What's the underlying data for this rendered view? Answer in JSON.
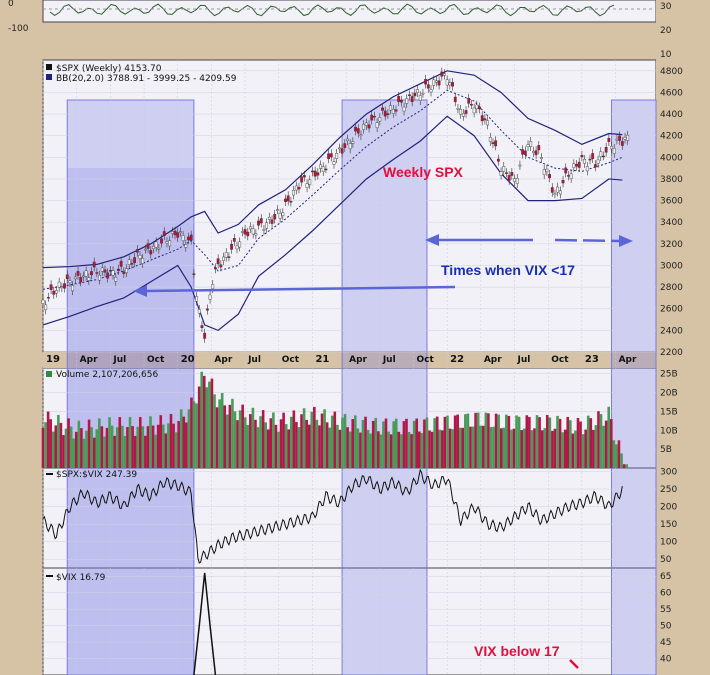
{
  "chart_data": [
    {
      "panel": "spx",
      "type": "candlestick",
      "title": "$SPX (Weekly) 4153.70",
      "indicator_label": "BB(20,2.0) 3788.91 - 3999.25 - 4209.59",
      "ylim": [
        2200,
        4800
      ],
      "y_ticks": [
        "4800",
        "4600",
        "4400",
        "4200",
        "4000",
        "3800",
        "3600",
        "3400",
        "3200",
        "3000",
        "2800",
        "2600",
        "2400",
        "2200"
      ],
      "x_labels": [
        "19",
        "Apr",
        "Jul",
        "Oct",
        "20",
        "Apr",
        "Jul",
        "Oct",
        "21",
        "Apr",
        "Jul",
        "Oct",
        "22",
        "Apr",
        "Jul",
        "Oct",
        "23",
        "Apr"
      ],
      "series": [
        {
          "name": "$SPX",
          "x": [
            2019.0,
            2019.1,
            2019.2,
            2019.3,
            2019.4,
            2019.5,
            2019.6,
            2019.7,
            2019.8,
            2019.9,
            2020.0,
            2020.1,
            2020.15,
            2020.2,
            2020.25,
            2020.3,
            2020.4,
            2020.5,
            2020.6,
            2020.7,
            2020.8,
            2020.9,
            2021.0,
            2021.2,
            2021.4,
            2021.6,
            2021.8,
            2022.0,
            2022.1,
            2022.2,
            2022.3,
            2022.4,
            2022.5,
            2022.6,
            2022.7,
            2022.8,
            2022.9,
            2023.0,
            2023.1,
            2023.2,
            2023.3
          ],
          "y": [
            2650,
            2790,
            2850,
            2900,
            2950,
            2920,
            2960,
            3080,
            3150,
            3230,
            3300,
            3200,
            2600,
            2350,
            2830,
            3000,
            3150,
            3300,
            3350,
            3420,
            3550,
            3750,
            3820,
            4050,
            4300,
            4450,
            4600,
            4760,
            4400,
            4500,
            4300,
            3900,
            3780,
            4130,
            4000,
            3650,
            3850,
            3970,
            3950,
            4100,
            4153.7
          ]
        },
        {
          "name": "BB upper",
          "x": [
            2019.0,
            2019.2,
            2019.4,
            2019.6,
            2019.8,
            2020.0,
            2020.1,
            2020.2,
            2020.3,
            2020.45,
            2020.6,
            2020.8,
            2021.0,
            2021.2,
            2021.4,
            2021.6,
            2021.8,
            2022.0,
            2022.2,
            2022.4,
            2022.6,
            2022.8,
            2023.0,
            2023.2,
            2023.3
          ],
          "y": [
            2980,
            2990,
            3010,
            3080,
            3200,
            3360,
            3450,
            3500,
            3300,
            3380,
            3560,
            3700,
            3930,
            4180,
            4400,
            4560,
            4680,
            4800,
            4760,
            4600,
            4360,
            4250,
            4120,
            4220,
            4210
          ]
        },
        {
          "name": "BB middle",
          "x": [
            2019.0,
            2019.2,
            2019.4,
            2019.6,
            2019.8,
            2020.0,
            2020.1,
            2020.2,
            2020.3,
            2020.45,
            2020.6,
            2020.8,
            2021.0,
            2021.2,
            2021.4,
            2021.6,
            2021.8,
            2022.0,
            2022.2,
            2022.4,
            2022.6,
            2022.8,
            2023.0,
            2023.2,
            2023.3
          ],
          "y": [
            2780,
            2820,
            2870,
            2950,
            3050,
            3150,
            3230,
            3100,
            2950,
            3000,
            3250,
            3430,
            3650,
            3880,
            4100,
            4280,
            4430,
            4620,
            4520,
            4250,
            4000,
            3900,
            3870,
            3950,
            4000
          ]
        },
        {
          "name": "BB lower",
          "x": [
            2019.0,
            2019.2,
            2019.4,
            2019.6,
            2019.8,
            2020.0,
            2020.1,
            2020.2,
            2020.3,
            2020.45,
            2020.6,
            2020.8,
            2021.0,
            2021.2,
            2021.4,
            2021.6,
            2021.8,
            2022.0,
            2022.2,
            2022.4,
            2022.6,
            2022.8,
            2023.0,
            2023.2,
            2023.3
          ],
          "y": [
            2450,
            2530,
            2620,
            2700,
            2850,
            3000,
            2800,
            2450,
            2400,
            2550,
            2900,
            3100,
            3320,
            3560,
            3800,
            3980,
            4150,
            4380,
            4200,
            3850,
            3600,
            3600,
            3620,
            3800,
            3790
          ]
        }
      ],
      "annotations": [
        "Weekly SPX",
        "Times when VIX <17"
      ]
    },
    {
      "panel": "volume",
      "type": "bar",
      "title": "Volume 2,107,206,656",
      "ylim": [
        0,
        25
      ],
      "y_ticks": [
        "25B",
        "20B",
        "15B",
        "10B",
        "5B"
      ],
      "series": [
        {
          "name": "Volume",
          "x": [
            2019.0,
            2019.25,
            2019.5,
            2019.75,
            2020.0,
            2020.1,
            2020.2,
            2020.3,
            2020.5,
            2020.75,
            2021.0,
            2021.25,
            2021.5,
            2021.75,
            2022.0,
            2022.25,
            2022.5,
            2022.75,
            2023.0,
            2023.2,
            2023.3
          ],
          "values": [
            13,
            10,
            11,
            11,
            12,
            16,
            25,
            18,
            14,
            12,
            14,
            12,
            11,
            11,
            12,
            13,
            12,
            12,
            11,
            14,
            2.1
          ]
        }
      ]
    },
    {
      "panel": "spx_vix_ratio",
      "type": "line",
      "title": "$SPX:$VIX 247.39",
      "ylim": [
        25,
        300
      ],
      "y_ticks": [
        "300",
        "250",
        "200",
        "150",
        "100",
        "50"
      ],
      "series": [
        {
          "name": "$SPX:$VIX",
          "x": [
            2019.0,
            2019.1,
            2019.2,
            2019.3,
            2019.4,
            2019.5,
            2019.6,
            2019.7,
            2019.8,
            2019.9,
            2020.0,
            2020.1,
            2020.15,
            2020.2,
            2020.3,
            2020.4,
            2020.5,
            2020.6,
            2020.7,
            2020.8,
            2020.9,
            2021.0,
            2021.1,
            2021.2,
            2021.3,
            2021.4,
            2021.5,
            2021.6,
            2021.7,
            2021.8,
            2021.9,
            2022.0,
            2022.1,
            2022.2,
            2022.3,
            2022.4,
            2022.5,
            2022.6,
            2022.7,
            2022.8,
            2022.9,
            2023.0,
            2023.1,
            2023.2,
            2023.3
          ],
          "y": [
            160,
            120,
            200,
            240,
            210,
            230,
            200,
            250,
            230,
            270,
            260,
            240,
            50,
            60,
            90,
            110,
            120,
            130,
            140,
            150,
            160,
            170,
            230,
            210,
            260,
            280,
            250,
            270,
            240,
            290,
            260,
            280,
            160,
            200,
            150,
            140,
            170,
            200,
            160,
            180,
            200,
            210,
            230,
            200,
            247.39
          ]
        }
      ]
    },
    {
      "panel": "vix",
      "type": "line",
      "title": "$VIX 16.79",
      "ylim": [
        35,
        67
      ],
      "y_ticks": [
        "65",
        "60",
        "55",
        "50",
        "45",
        "40"
      ],
      "series": [
        {
          "name": "$VIX",
          "x": [
            2020.12,
            2020.16,
            2020.2,
            2020.24,
            2020.28
          ],
          "y": [
            35,
            50,
            66,
            50,
            35
          ]
        }
      ],
      "annotations": [
        "VIX below 17"
      ]
    },
    {
      "panel": "top_indicator",
      "type": "line",
      "y_ticks": [
        "0",
        "-100",
        "30",
        "20",
        "10"
      ]
    }
  ]
}
